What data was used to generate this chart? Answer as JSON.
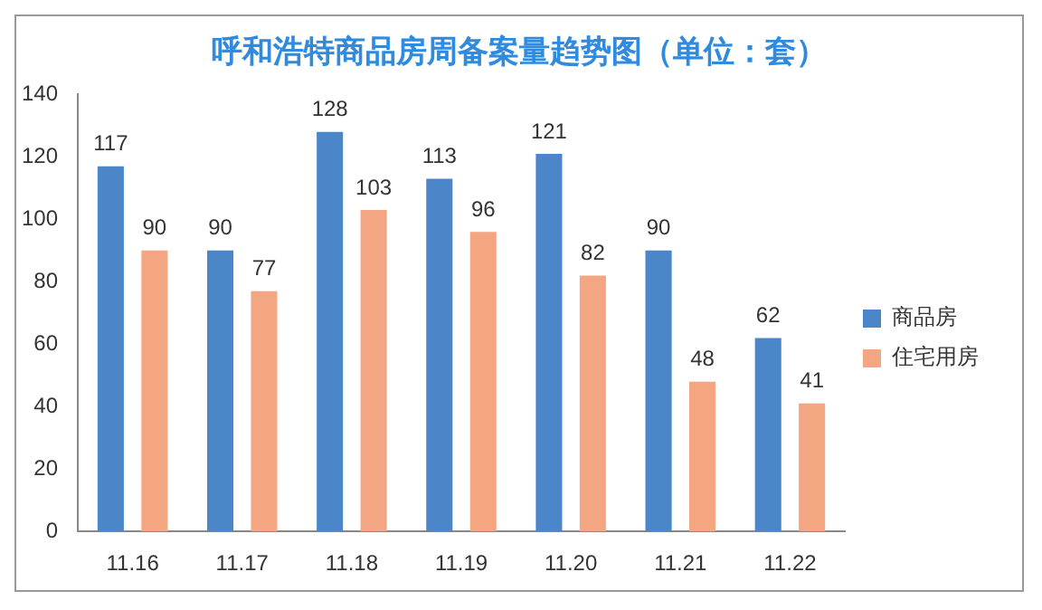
{
  "chart_data": {
    "type": "bar",
    "title": "呼和浩特商品房周备案量趋势图（单位：套）",
    "categories": [
      "11.16",
      "11.17",
      "11.18",
      "11.19",
      "11.20",
      "11.21",
      "11.22"
    ],
    "series": [
      {
        "name": "商品房",
        "color": "#4a86c8",
        "values": [
          117,
          90,
          128,
          113,
          121,
          90,
          62
        ]
      },
      {
        "name": "住宅用房",
        "color": "#f4a582",
        "values": [
          90,
          77,
          103,
          96,
          82,
          48,
          41
        ]
      }
    ],
    "ylim": [
      0,
      140
    ],
    "yticks": [
      0,
      20,
      40,
      60,
      80,
      100,
      120,
      140
    ],
    "grid": false,
    "legend": "right",
    "data_labels": true
  }
}
